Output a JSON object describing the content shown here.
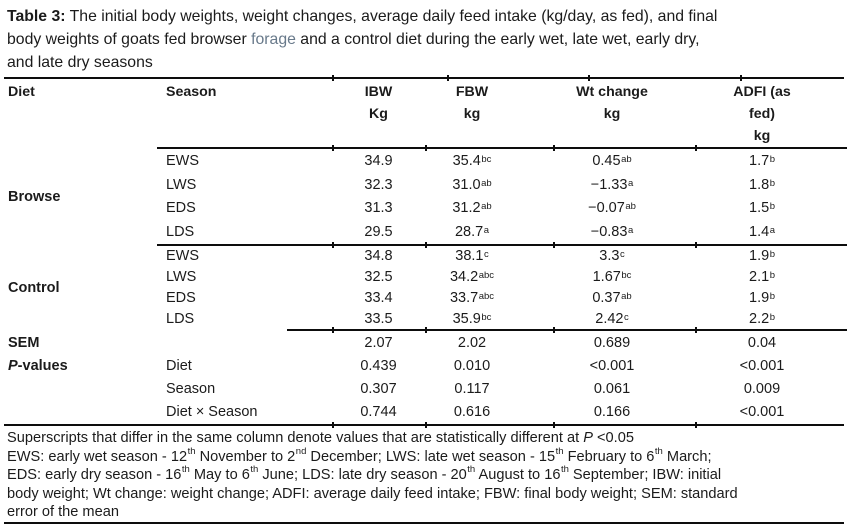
{
  "caption": {
    "label": "Table 3:",
    "line1_rest": " The initial body weights, weight changes, average daily feed intake (kg/day, as fed), and final",
    "line2_pre": "body weights of goats fed browser ",
    "forage_word": "forage",
    "line2_post": " and a control diet during the early wet, late wet, early dry,",
    "line3": "and late dry seasons"
  },
  "columns": {
    "diet": "Diet",
    "season": "Season",
    "ibw": [
      "IBW",
      "Kg"
    ],
    "fbw": [
      "FBW",
      "kg"
    ],
    "wt": [
      "Wt change",
      "kg"
    ],
    "adfi": [
      "ADFI (as",
      "fed)",
      "kg"
    ]
  },
  "groups": [
    {
      "diet": "Browse",
      "rows": [
        {
          "season": "EWS",
          "ibw": {
            "v": "34.9"
          },
          "fbw": {
            "v": "35.4",
            "s": "bc"
          },
          "wt": {
            "v": "0.45",
            "s": "ab"
          },
          "adfi": {
            "v": "1.7",
            "s": "b"
          }
        },
        {
          "season": "LWS",
          "ibw": {
            "v": "32.3"
          },
          "fbw": {
            "v": "31.0",
            "s": "ab"
          },
          "wt": {
            "v": "−1.33",
            "s": "a"
          },
          "adfi": {
            "v": "1.8",
            "s": "b"
          }
        },
        {
          "season": "EDS",
          "ibw": {
            "v": "31.3"
          },
          "fbw": {
            "v": "31.2",
            "s": "ab"
          },
          "wt": {
            "v": "−0.07",
            "s": "ab"
          },
          "adfi": {
            "v": "1.5",
            "s": "b"
          }
        },
        {
          "season": "LDS",
          "ibw": {
            "v": "29.5"
          },
          "fbw": {
            "v": "28.7",
            "s": "a"
          },
          "wt": {
            "v": "−0.83",
            "s": "a"
          },
          "adfi": {
            "v": "1.4",
            "s": "a"
          }
        }
      ]
    },
    {
      "diet": "Control",
      "rows": [
        {
          "season": "EWS",
          "ibw": {
            "v": "34.8"
          },
          "fbw": {
            "v": "38.1",
            "s": "c"
          },
          "wt": {
            "v": "3.3",
            "s": "c"
          },
          "adfi": {
            "v": "1.9",
            "s": "b"
          }
        },
        {
          "season": "LWS",
          "ibw": {
            "v": "32.5"
          },
          "fbw": {
            "v": "34.2",
            "s": "abc"
          },
          "wt": {
            "v": "1.67",
            "s": "bc"
          },
          "adfi": {
            "v": "2.1",
            "s": "b"
          }
        },
        {
          "season": "EDS",
          "ibw": {
            "v": "33.4"
          },
          "fbw": {
            "v": "33.7",
            "s": "abc"
          },
          "wt": {
            "v": "0.37",
            "s": "ab"
          },
          "adfi": {
            "v": "1.9",
            "s": "b"
          }
        },
        {
          "season": "LDS",
          "ibw": {
            "v": "33.5"
          },
          "fbw": {
            "v": "35.9",
            "s": "bc"
          },
          "wt": {
            "v": "2.42",
            "s": "c"
          },
          "adfi": {
            "v": "2.2",
            "s": "b"
          }
        }
      ]
    }
  ],
  "stats": {
    "sem_label": "SEM",
    "sem": [
      "2.07",
      "2.02",
      "0.689",
      "0.04"
    ],
    "pvalues_label_em": "P",
    "pvalues_label_rest": "-values",
    "pvalues": [
      {
        "factor": "Diet",
        "values": [
          "0.439",
          "0.010",
          "<0.001",
          "<0.001"
        ]
      },
      {
        "factor": "Season",
        "values": [
          "0.307",
          "0.117",
          "0.061",
          "0.009"
        ]
      },
      {
        "factor": "Diet × Season",
        "values": [
          "0.744",
          "0.616",
          "0.166",
          "<0.001"
        ]
      }
    ]
  },
  "footnotes": {
    "lines": [
      [
        {
          "t": "Superscripts that differ in the same column denote values that are statistically different at "
        },
        {
          "em": "P"
        },
        {
          "t": " <0.05"
        }
      ],
      [
        {
          "t": "EWS: early wet season - 12"
        },
        {
          "s": "th"
        },
        {
          "t": " November to 2"
        },
        {
          "s": "nd"
        },
        {
          "t": " December; LWS: late wet season - 15"
        },
        {
          "s": "th"
        },
        {
          "t": " February to 6"
        },
        {
          "s": "th"
        },
        {
          "t": " March;"
        }
      ],
      [
        {
          "t": "EDS: early dry season - 16"
        },
        {
          "s": "th"
        },
        {
          "t": " May to 6"
        },
        {
          "s": "th"
        },
        {
          "t": " June; LDS: late dry season - 20"
        },
        {
          "s": "th"
        },
        {
          "t": " August to 16"
        },
        {
          "s": "th"
        },
        {
          "t": " September; IBW: initial"
        }
      ],
      [
        {
          "t": "body weight; Wt change: weight change; ADFI: average daily feed intake; FBW: final body weight; SEM: standard"
        }
      ],
      [
        {
          "t": "error of the mean"
        }
      ]
    ]
  },
  "colors": {
    "text": "#1b1b1b",
    "forage": "#68798a",
    "rule": "#0d0d0d"
  }
}
